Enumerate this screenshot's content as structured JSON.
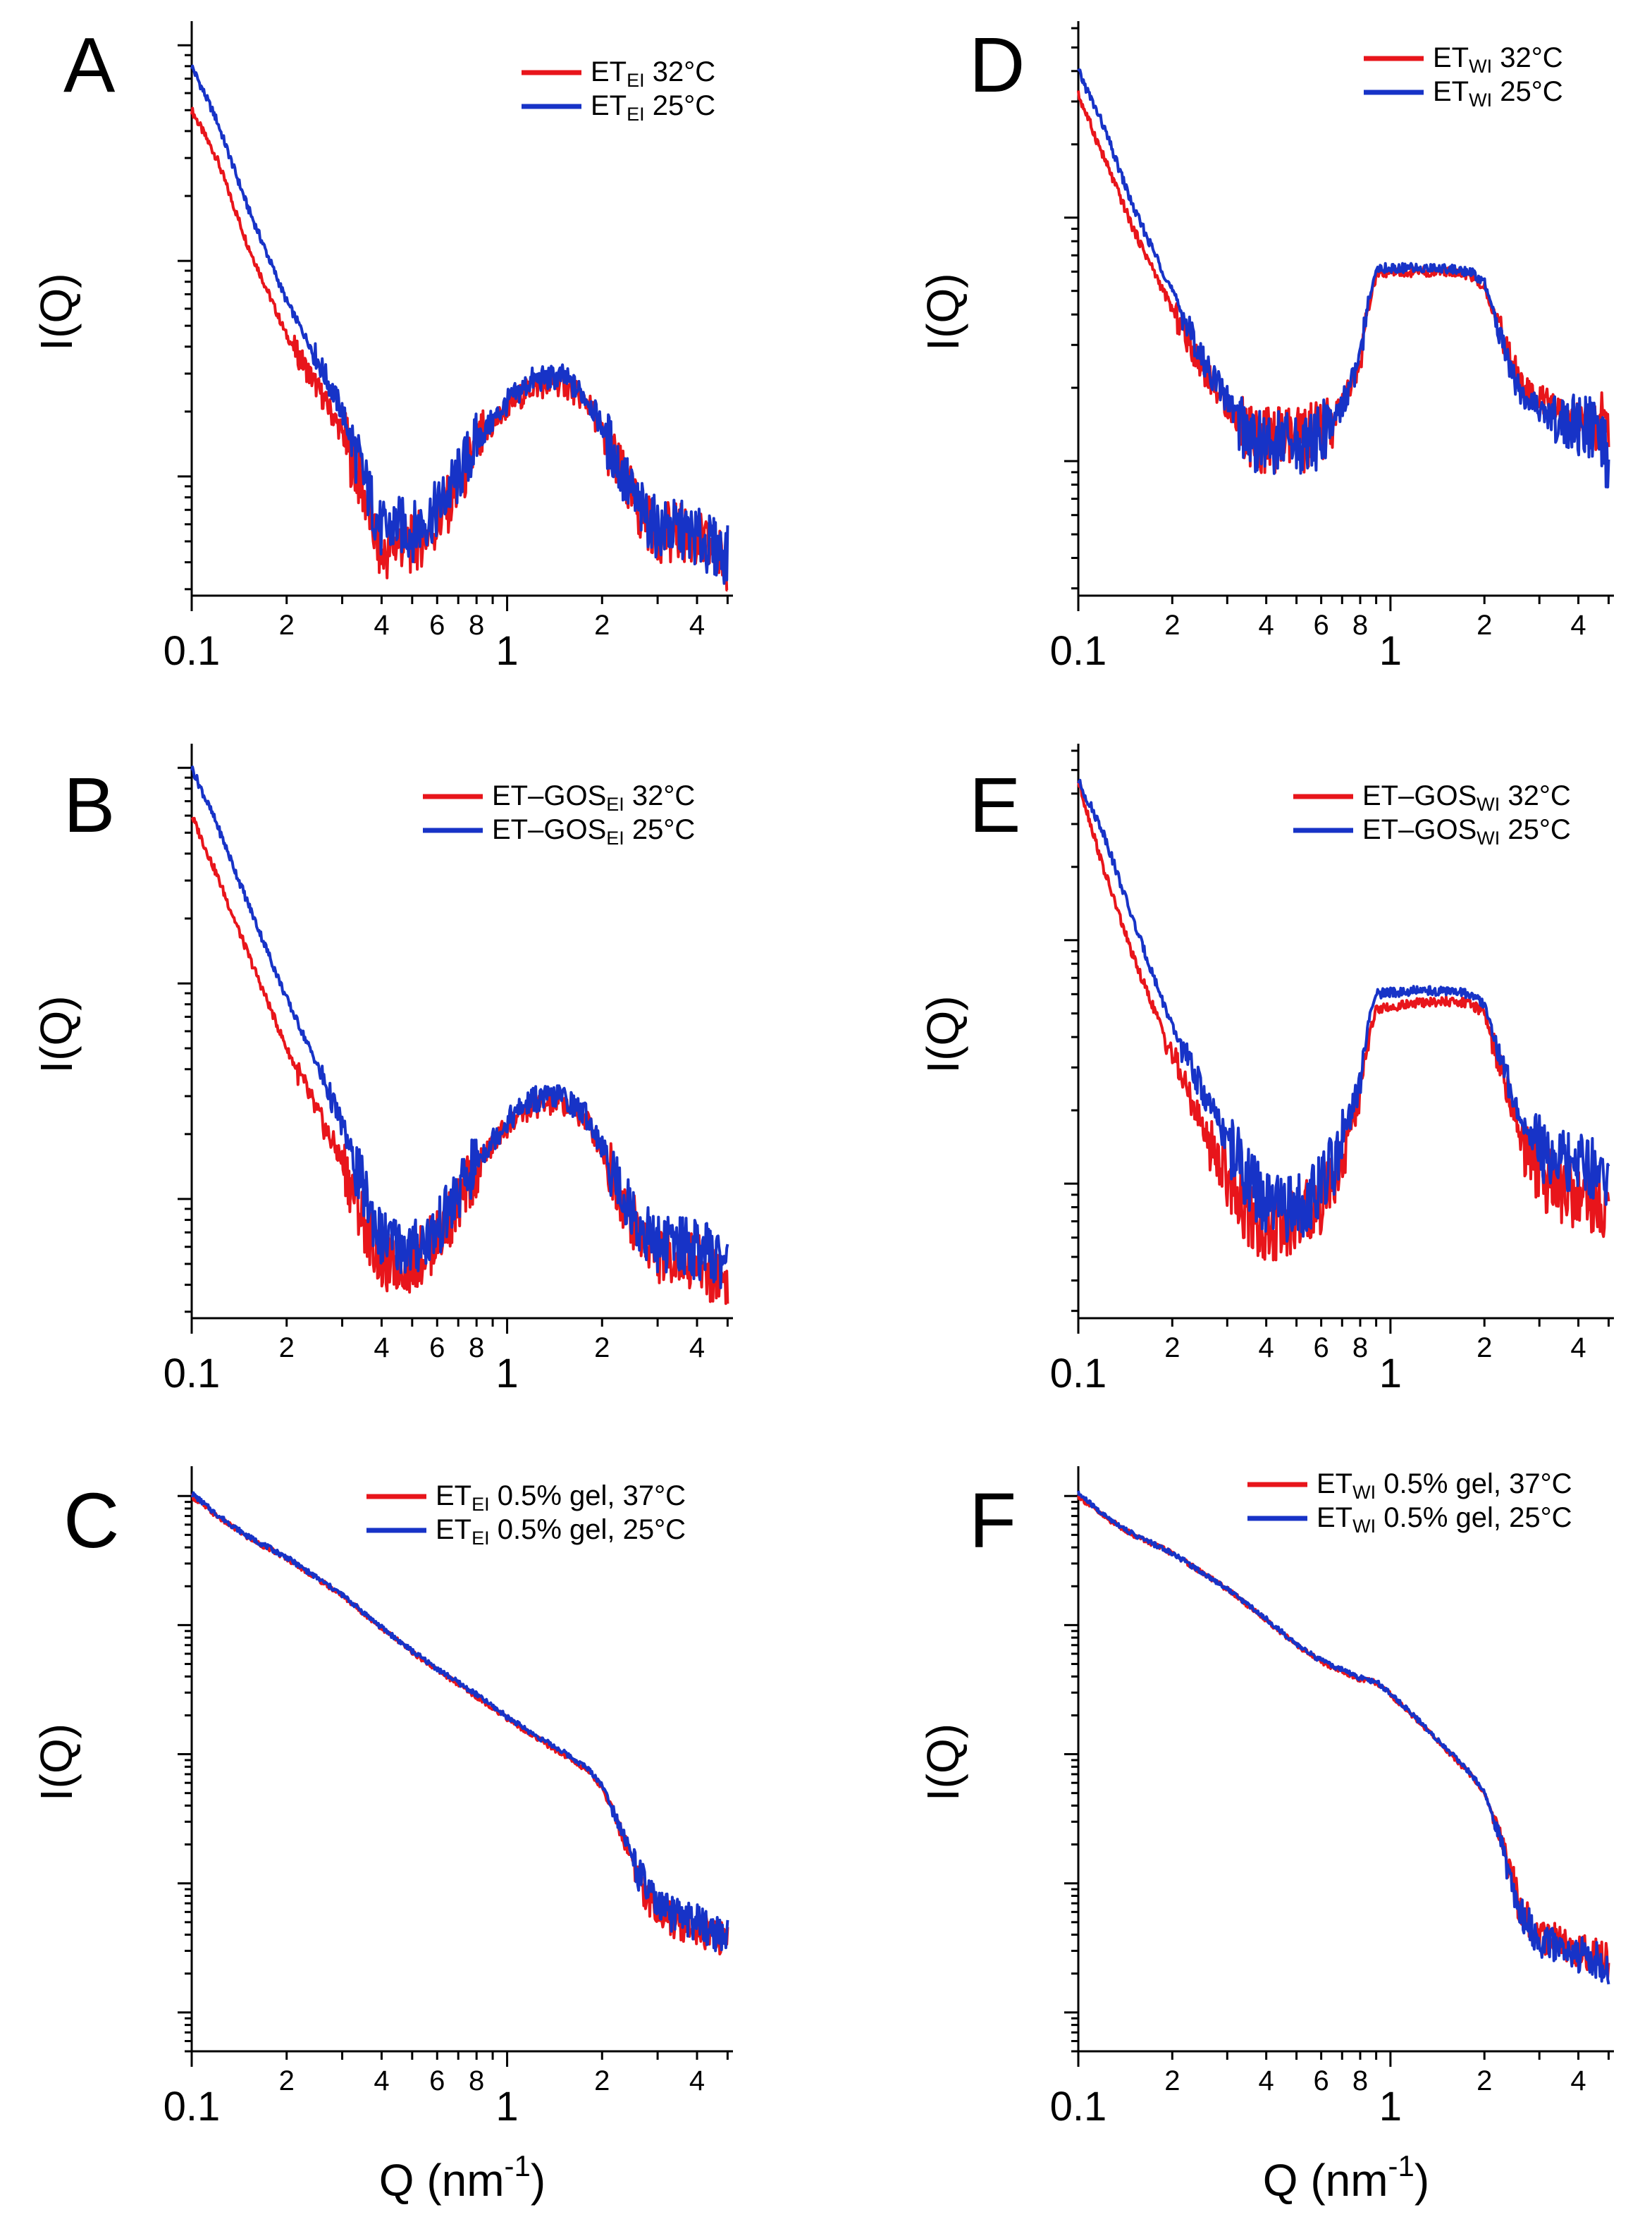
{
  "chart_data": [
    {
      "type": "line",
      "panel": "A",
      "ylabel": "I(Q)",
      "xlabel": "",
      "xscale": "log",
      "yscale": "log",
      "xlim": [
        0.1,
        5.2
      ],
      "ylim": [
        0.28,
        120
      ],
      "grid": false,
      "legend_position": "top-right",
      "x_major_ticks": [
        "0.1",
        "1"
      ],
      "x_minor_ticks": [
        "2",
        "4",
        "6",
        "8",
        "2",
        "4"
      ],
      "series": [
        {
          "name": "ET",
          "sub": "EI",
          "suffix": " 32°C",
          "color": "#e8151b",
          "x": [
            0.1,
            0.12,
            0.15,
            0.2,
            0.25,
            0.3,
            0.35,
            0.4,
            0.45,
            0.5,
            0.6,
            0.7,
            0.8,
            1.0,
            1.2,
            1.5,
            1.8,
            2.0,
            2.3,
            2.6,
            3.0,
            3.5,
            4.0,
            4.5,
            5.0
          ],
          "y": [
            50,
            30,
            12,
            4.5,
            2.6,
            1.6,
            0.85,
            0.42,
            0.5,
            0.48,
            0.6,
            0.9,
            1.35,
            2.1,
            2.6,
            2.7,
            2.2,
            1.6,
            1.0,
            0.7,
            0.55,
            0.55,
            0.5,
            0.45,
            0.4
          ]
        },
        {
          "name": "ET",
          "sub": "EI",
          "suffix": " 25°C",
          "color": "#1733c7",
          "x": [
            0.1,
            0.12,
            0.15,
            0.2,
            0.25,
            0.3,
            0.35,
            0.4,
            0.45,
            0.5,
            0.6,
            0.7,
            0.8,
            1.0,
            1.2,
            1.5,
            1.8,
            2.0,
            2.3,
            2.6,
            3.0,
            3.5,
            4.0,
            4.5,
            5.0
          ],
          "y": [
            80,
            45,
            18,
            6.5,
            3.5,
            2.0,
            1.0,
            0.55,
            0.6,
            0.55,
            0.7,
            1.0,
            1.45,
            2.2,
            2.8,
            2.9,
            2.3,
            1.7,
            1.05,
            0.72,
            0.57,
            0.57,
            0.52,
            0.47,
            0.43
          ]
        }
      ]
    },
    {
      "type": "line",
      "panel": "B",
      "ylabel": "I(Q)",
      "xlabel": "",
      "xscale": "log",
      "yscale": "log",
      "xlim": [
        0.1,
        5.2
      ],
      "ylim": [
        0.28,
        120
      ],
      "grid": false,
      "legend_position": "top-right",
      "x_major_ticks": [
        "0.1",
        "1"
      ],
      "x_minor_ticks": [
        "2",
        "4",
        "6",
        "8",
        "2",
        "4"
      ],
      "series": [
        {
          "name": "ET–GOS",
          "sub": "EI",
          "suffix": " 32°C",
          "color": "#e8151b",
          "x": [
            0.1,
            0.12,
            0.15,
            0.2,
            0.25,
            0.3,
            0.35,
            0.4,
            0.45,
            0.5,
            0.6,
            0.7,
            0.8,
            1.0,
            1.2,
            1.5,
            1.8,
            2.0,
            2.3,
            2.6,
            3.0,
            3.5,
            4.0,
            4.5,
            5.0
          ],
          "y": [
            60,
            32,
            14,
            5.0,
            2.5,
            1.5,
            0.8,
            0.5,
            0.5,
            0.5,
            0.65,
            0.95,
            1.4,
            2.2,
            2.7,
            2.8,
            2.3,
            1.7,
            1.05,
            0.7,
            0.55,
            0.55,
            0.5,
            0.45,
            0.42
          ]
        },
        {
          "name": "ET–GOS",
          "sub": "EI",
          "suffix": " 25°C",
          "color": "#1733c7",
          "x": [
            0.1,
            0.12,
            0.15,
            0.2,
            0.25,
            0.3,
            0.35,
            0.4,
            0.45,
            0.5,
            0.6,
            0.7,
            0.8,
            1.0,
            1.2,
            1.5,
            1.8,
            2.0,
            2.3,
            2.6,
            3.0,
            3.5,
            4.0,
            4.5,
            5.0
          ],
          "y": [
            100,
            55,
            24,
            8.5,
            4.2,
            2.2,
            1.1,
            0.65,
            0.62,
            0.58,
            0.72,
            1.05,
            1.5,
            2.3,
            2.9,
            3.0,
            2.4,
            1.75,
            1.1,
            0.75,
            0.62,
            0.62,
            0.58,
            0.55,
            0.5
          ]
        }
      ]
    },
    {
      "type": "line",
      "panel": "C",
      "ylabel": "I(Q)",
      "xlabel": "Q (nm",
      "xlabel_sup": "-1",
      "xlabel_end": ")",
      "xscale": "log",
      "yscale": "log",
      "xlim": [
        0.1,
        5.2
      ],
      "ylim": [
        0.05,
        1500
      ],
      "grid": false,
      "legend_position": "top-right",
      "x_major_ticks": [
        "0.1",
        "1"
      ],
      "x_minor_ticks": [
        "2",
        "4",
        "6",
        "8",
        "2",
        "4"
      ],
      "series": [
        {
          "name": "ET",
          "sub": "EI",
          "suffix": " 0.5% gel, 37°C",
          "color": "#e8151b",
          "x": [
            0.1,
            0.12,
            0.15,
            0.2,
            0.3,
            0.4,
            0.5,
            0.6,
            0.8,
            1.0,
            1.2,
            1.5,
            1.8,
            2.0,
            2.3,
            2.6,
            3.0,
            3.5,
            4.0,
            4.5,
            5.0
          ],
          "y": [
            1000,
            700,
            480,
            330,
            170,
            95,
            62,
            45,
            28,
            19,
            14,
            10,
            7.5,
            5.5,
            2.5,
            1.1,
            0.6,
            0.5,
            0.45,
            0.4,
            0.35
          ]
        },
        {
          "name": "ET",
          "sub": "EI",
          "suffix": " 0.5% gel, 25°C",
          "color": "#1733c7",
          "x": [
            0.1,
            0.12,
            0.15,
            0.2,
            0.3,
            0.4,
            0.5,
            0.6,
            0.8,
            1.0,
            1.2,
            1.5,
            1.8,
            2.0,
            2.3,
            2.6,
            3.0,
            3.5,
            4.0,
            4.5,
            5.0
          ],
          "y": [
            1050,
            720,
            490,
            335,
            172,
            96,
            63,
            46,
            29,
            19.5,
            14.5,
            10.5,
            7.8,
            5.8,
            2.7,
            1.2,
            0.65,
            0.55,
            0.5,
            0.42,
            0.38
          ]
        }
      ]
    },
    {
      "type": "line",
      "panel": "D",
      "ylabel": "I(Q)",
      "xlabel": "",
      "xscale": "log",
      "yscale": "log",
      "xlim": [
        0.1,
        5.2
      ],
      "ylim": [
        0.28,
        60
      ],
      "grid": false,
      "legend_position": "top-right",
      "x_major_ticks": [
        "0.1",
        "1"
      ],
      "x_minor_ticks": [
        "2",
        "4",
        "6",
        "8",
        "2",
        "4"
      ],
      "series": [
        {
          "name": "ET",
          "sub": "WI",
          "suffix": " 32°C",
          "color": "#e8151b",
          "x": [
            0.1,
            0.12,
            0.15,
            0.2,
            0.25,
            0.3,
            0.35,
            0.4,
            0.45,
            0.5,
            0.6,
            0.7,
            0.8,
            0.85,
            0.9,
            1.0,
            1.2,
            1.5,
            1.8,
            2.0,
            2.3,
            2.6,
            3.0,
            3.5,
            4.0,
            4.5,
            5.0
          ],
          "y": [
            32,
            18,
            9,
            4.2,
            2.4,
            1.7,
            1.3,
            1.2,
            1.25,
            1.2,
            1.3,
            1.7,
            2.5,
            4.2,
            5.8,
            5.9,
            6.0,
            6.0,
            5.8,
            5.2,
            3.2,
            2.1,
            1.8,
            1.6,
            1.5,
            1.5,
            1.35
          ]
        },
        {
          "name": "ET",
          "sub": "WI",
          "suffix": " 25°C",
          "color": "#1733c7",
          "x": [
            0.1,
            0.12,
            0.15,
            0.2,
            0.25,
            0.3,
            0.35,
            0.4,
            0.45,
            0.5,
            0.6,
            0.7,
            0.8,
            0.85,
            0.9,
            1.0,
            1.2,
            1.5,
            1.8,
            2.0,
            2.3,
            2.6,
            3.0,
            3.5,
            4.0,
            4.5,
            5.0
          ],
          "y": [
            40,
            24,
            11,
            5.0,
            2.6,
            1.8,
            1.3,
            1.15,
            1.2,
            1.15,
            1.25,
            1.7,
            2.6,
            4.6,
            6.2,
            6.2,
            6.2,
            6.2,
            6.0,
            5.4,
            3.0,
            1.9,
            1.6,
            1.45,
            1.4,
            1.3,
            1.0
          ]
        }
      ]
    },
    {
      "type": "line",
      "panel": "E",
      "ylabel": "I(Q)",
      "xlabel": "",
      "xscale": "log",
      "yscale": "log",
      "xlim": [
        0.1,
        5.2
      ],
      "ylim": [
        0.28,
        60
      ],
      "grid": false,
      "legend_position": "top-right",
      "x_major_ticks": [
        "0.1",
        "1"
      ],
      "x_minor_ticks": [
        "2",
        "4",
        "6",
        "8",
        "2",
        "4"
      ],
      "series": [
        {
          "name": "ET–GOS",
          "sub": "WI",
          "suffix": " 32°C",
          "color": "#e8151b",
          "x": [
            0.1,
            0.12,
            0.15,
            0.2,
            0.25,
            0.3,
            0.35,
            0.4,
            0.45,
            0.5,
            0.6,
            0.7,
            0.8,
            0.85,
            0.9,
            1.0,
            1.2,
            1.5,
            1.8,
            2.0,
            2.3,
            2.6,
            3.0,
            3.5,
            4.0,
            4.5,
            5.0
          ],
          "y": [
            45,
            20,
            8.5,
            3.4,
            1.7,
            1.1,
            0.75,
            0.62,
            0.65,
            0.7,
            0.85,
            1.3,
            2.3,
            4.0,
            5.2,
            5.3,
            5.5,
            5.6,
            5.5,
            5.0,
            2.8,
            1.6,
            1.1,
            0.95,
            0.9,
            0.85,
            0.8
          ]
        },
        {
          "name": "ET–GOS",
          "sub": "WI",
          "suffix": " 25°C",
          "color": "#1733c7",
          "x": [
            0.1,
            0.12,
            0.15,
            0.2,
            0.25,
            0.3,
            0.35,
            0.4,
            0.45,
            0.5,
            0.6,
            0.7,
            0.8,
            0.85,
            0.9,
            1.0,
            1.2,
            1.5,
            1.8,
            2.0,
            2.3,
            2.6,
            3.0,
            3.5,
            4.0,
            4.5,
            5.0
          ],
          "y": [
            45,
            28,
            12,
            4.4,
            2.4,
            1.5,
            1.05,
            0.8,
            0.78,
            0.8,
            0.95,
            1.45,
            2.6,
            4.6,
            6.0,
            6.1,
            6.2,
            6.2,
            6.0,
            5.4,
            3.0,
            1.9,
            1.4,
            1.25,
            1.2,
            1.1,
            1.05
          ]
        }
      ]
    },
    {
      "type": "line",
      "panel": "F",
      "ylabel": "I(Q)",
      "xlabel": "Q (nm",
      "xlabel_sup": "-1",
      "xlabel_end": ")",
      "xscale": "log",
      "yscale": "log",
      "xlim": [
        0.1,
        5.2
      ],
      "ylim": [
        0.05,
        1500
      ],
      "grid": false,
      "legend_position": "top-right",
      "x_major_ticks": [
        "0.1",
        "1"
      ],
      "x_minor_ticks": [
        "2",
        "4",
        "6",
        "8",
        "2",
        "4"
      ],
      "series": [
        {
          "name": "ET",
          "sub": "WI",
          "suffix": " 0.5% gel, 37°C",
          "color": "#e8151b",
          "x": [
            0.1,
            0.12,
            0.15,
            0.2,
            0.3,
            0.4,
            0.5,
            0.6,
            0.8,
            0.9,
            1.0,
            1.2,
            1.5,
            1.8,
            2.0,
            2.3,
            2.6,
            3.0,
            3.5,
            4.0,
            4.5,
            5.0
          ],
          "y": [
            1000,
            700,
            500,
            360,
            190,
            110,
            70,
            52,
            38,
            36,
            29,
            19,
            11,
            7.0,
            5.0,
            2.0,
            0.65,
            0.4,
            0.35,
            0.3,
            0.28,
            0.25
          ]
        },
        {
          "name": "ET",
          "sub": "WI",
          "suffix": " 0.5% gel, 25°C",
          "color": "#1733c7",
          "x": [
            0.1,
            0.12,
            0.15,
            0.2,
            0.3,
            0.4,
            0.5,
            0.6,
            0.8,
            0.9,
            1.0,
            1.2,
            1.5,
            1.8,
            2.0,
            2.3,
            2.6,
            3.0,
            3.5,
            4.0,
            4.5,
            5.0
          ],
          "y": [
            1050,
            720,
            505,
            362,
            192,
            112,
            71,
            53,
            39,
            36.5,
            29.5,
            19.5,
            11.2,
            7.2,
            5.1,
            1.9,
            0.6,
            0.36,
            0.32,
            0.28,
            0.26,
            0.22
          ]
        }
      ]
    }
  ]
}
